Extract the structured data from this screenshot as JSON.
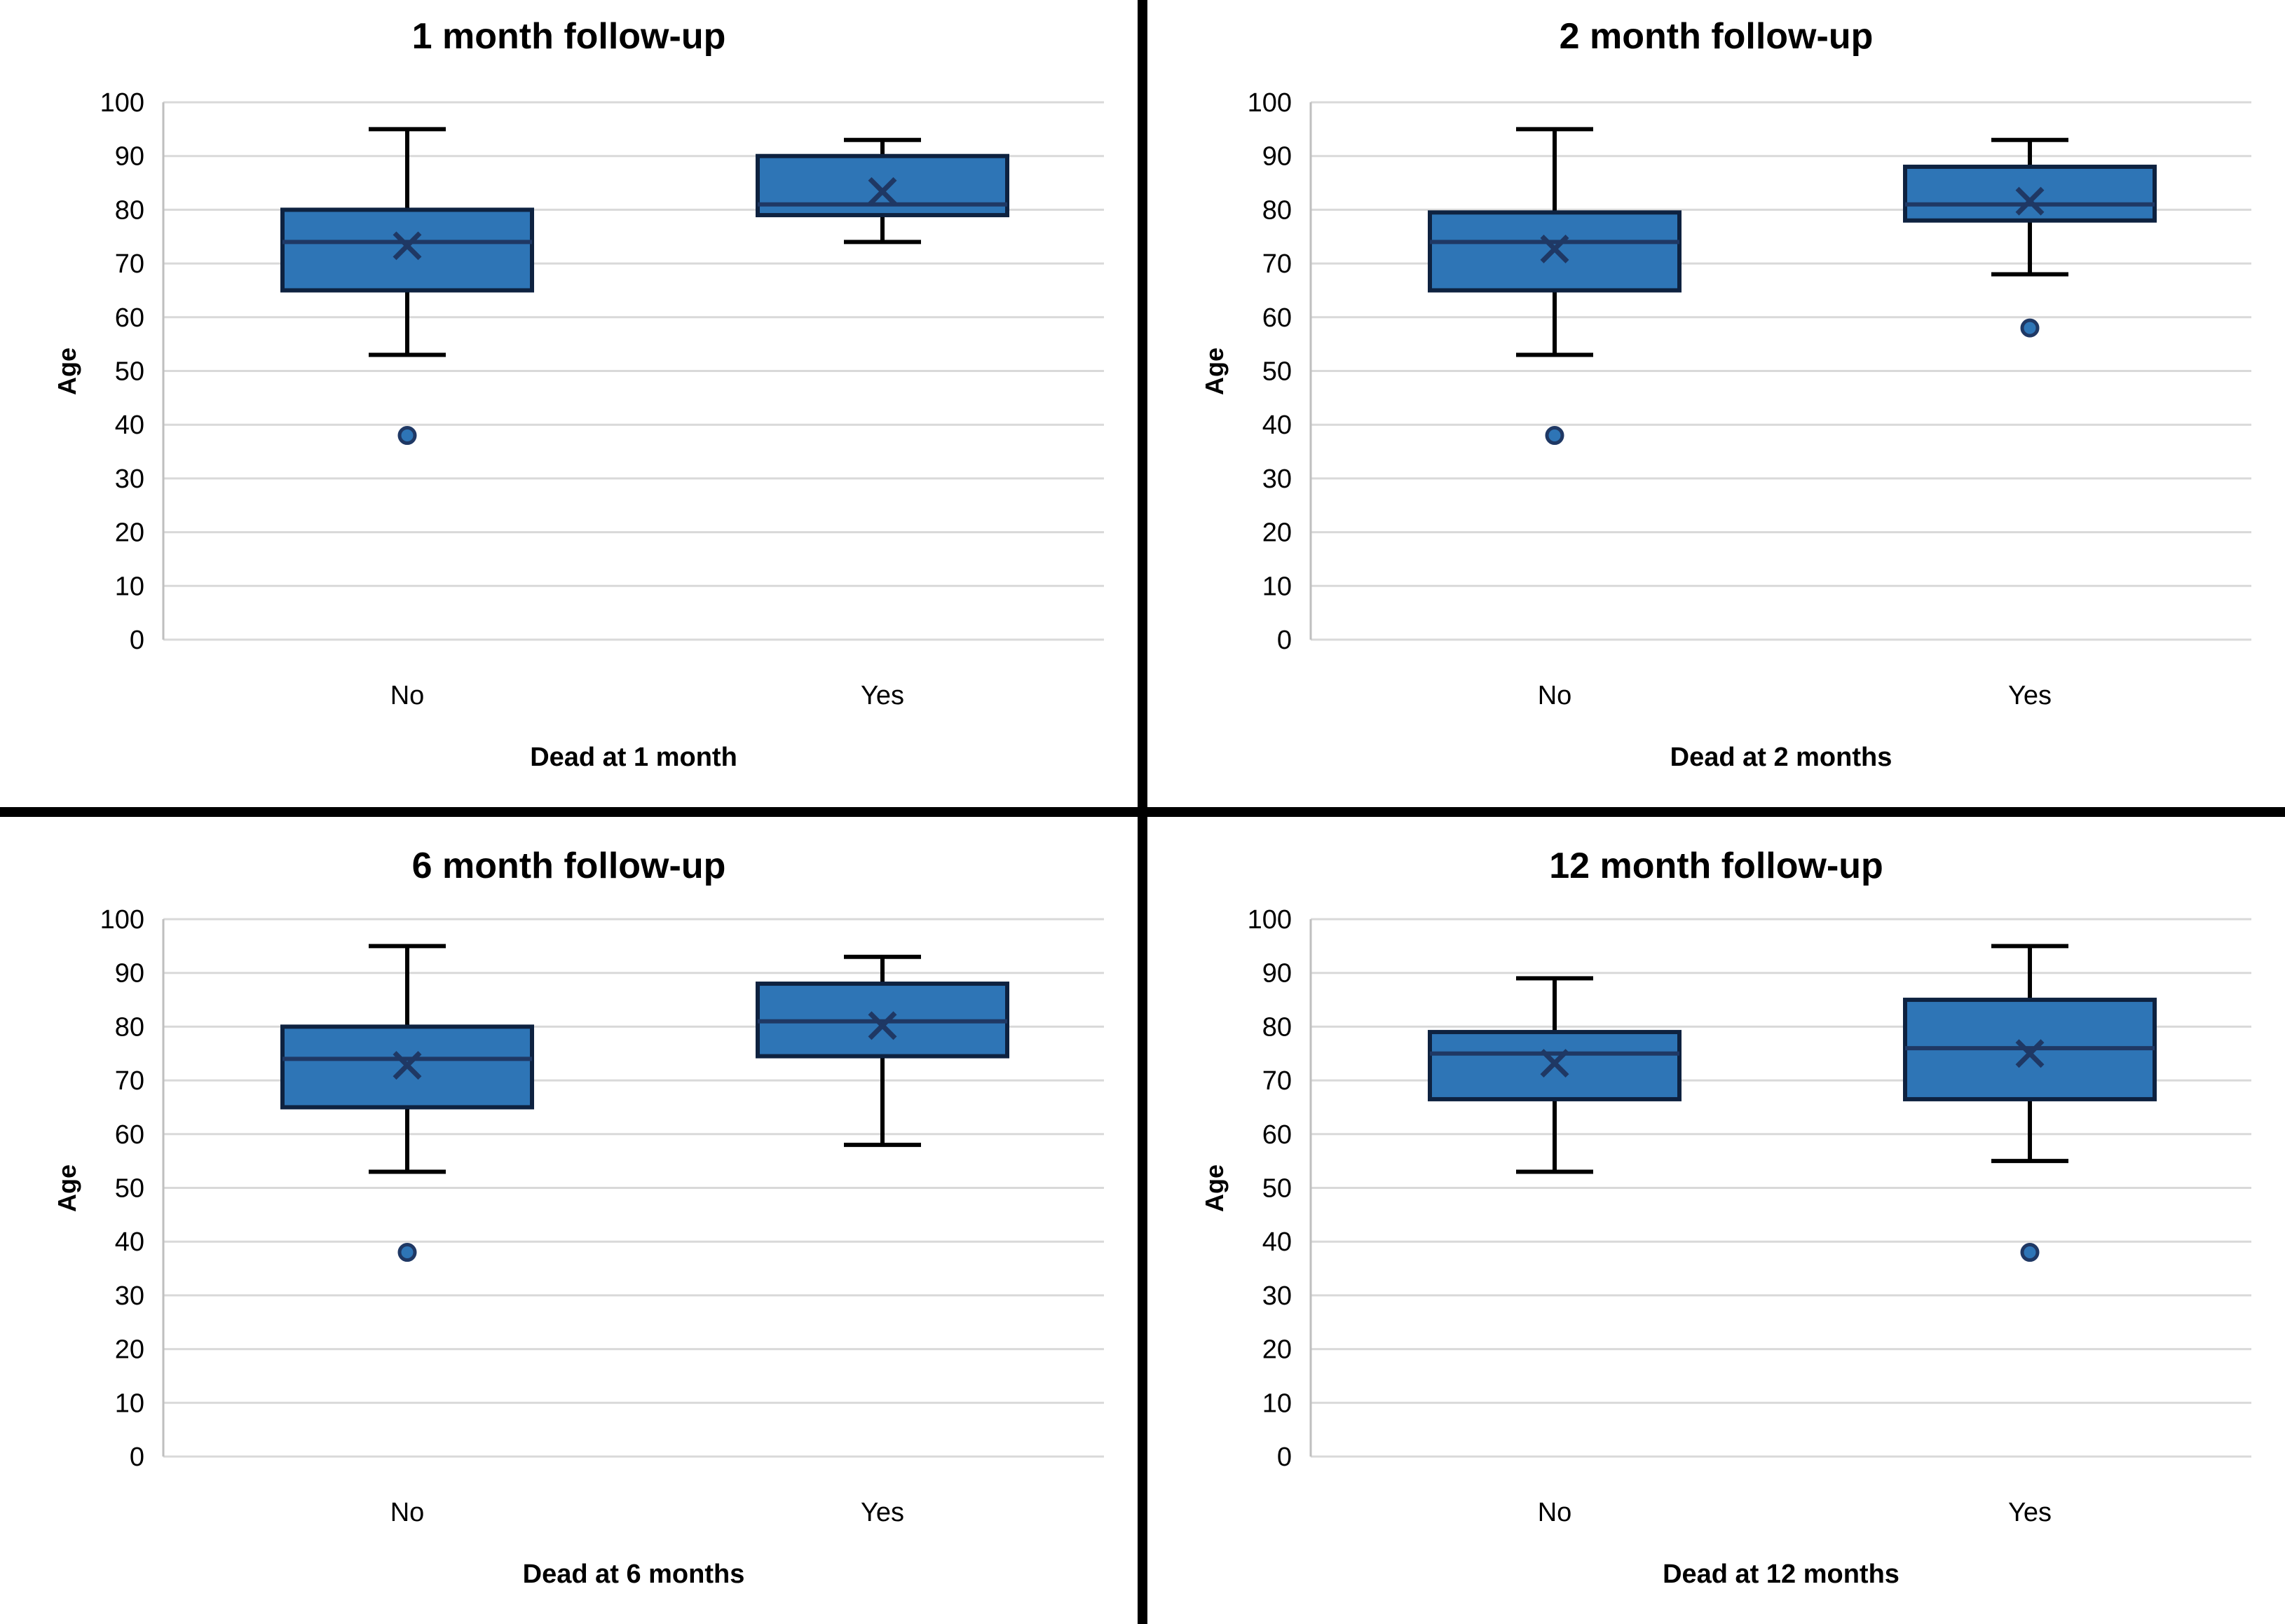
{
  "figure": {
    "background": "#ffffff",
    "divider_color": "#000000",
    "box_fill": "#2E75B6",
    "box_border": "#0E2240",
    "median_color": "#1F3864",
    "whisker_color": "#000000",
    "mean_marker_color": "#1F3864",
    "outlier_fill": "#2E75B6",
    "outlier_stroke": "#1F3864",
    "gridline_color": "#D9D9D9",
    "axis_line_color": "#BFBFBF",
    "text_color": "#000000"
  },
  "y_axis": {
    "label": "Age",
    "min": 0,
    "max": 100,
    "step": 10,
    "tick_labels": [
      "0",
      "10",
      "20",
      "30",
      "40",
      "50",
      "60",
      "70",
      "80",
      "90",
      "100"
    ]
  },
  "chart_data": [
    {
      "type": "boxplot",
      "title": "1 month follow-up",
      "xlabel": "Dead at 1 month",
      "ylabel": "Age",
      "ylim": [
        0,
        100
      ],
      "grid": true,
      "categories": [
        "No",
        "Yes"
      ],
      "series": [
        {
          "category": "No",
          "whisker_low": 53,
          "q1": 65,
          "median": 74,
          "q3": 80,
          "whisker_high": 95,
          "mean": 73.3,
          "outliers": [
            38
          ]
        },
        {
          "category": "Yes",
          "whisker_low": 74,
          "q1": 79,
          "median": 81,
          "q3": 90,
          "whisker_high": 93,
          "mean": 83.4,
          "outliers": []
        }
      ]
    },
    {
      "type": "boxplot",
      "title": "2 month follow-up",
      "xlabel": "Dead at 2 months",
      "ylabel": "Age",
      "ylim": [
        0,
        100
      ],
      "grid": true,
      "categories": [
        "No",
        "Yes"
      ],
      "series": [
        {
          "category": "No",
          "whisker_low": 53,
          "q1": 65,
          "median": 74,
          "q3": 79.5,
          "whisker_high": 95,
          "mean": 72.7,
          "outliers": [
            38
          ]
        },
        {
          "category": "Yes",
          "whisker_low": 68,
          "q1": 78,
          "median": 81,
          "q3": 88,
          "whisker_high": 93,
          "mean": 81.6,
          "outliers": [
            58
          ]
        }
      ]
    },
    {
      "type": "boxplot",
      "title": "6 month follow-up",
      "xlabel": "Dead at 6 months",
      "ylabel": "Age",
      "ylim": [
        0,
        100
      ],
      "grid": true,
      "categories": [
        "No",
        "Yes"
      ],
      "series": [
        {
          "category": "No",
          "whisker_low": 53,
          "q1": 65,
          "median": 74,
          "q3": 80,
          "whisker_high": 95,
          "mean": 72.8,
          "outliers": [
            38
          ]
        },
        {
          "category": "Yes",
          "whisker_low": 58,
          "q1": 74.5,
          "median": 81,
          "q3": 88,
          "whisker_high": 93,
          "mean": 80.2,
          "outliers": []
        }
      ]
    },
    {
      "type": "boxplot",
      "title": "12 month follow-up",
      "xlabel": "Dead at 12 months",
      "ylabel": "Age",
      "ylim": [
        0,
        100
      ],
      "grid": true,
      "categories": [
        "No",
        "Yes"
      ],
      "series": [
        {
          "category": "No",
          "whisker_low": 53,
          "q1": 66.5,
          "median": 75,
          "q3": 79,
          "whisker_high": 89,
          "mean": 73.2,
          "outliers": []
        },
        {
          "category": "Yes",
          "whisker_low": 55,
          "q1": 66.5,
          "median": 76,
          "q3": 85,
          "whisker_high": 95,
          "mean": 75.0,
          "outliers": [
            38
          ]
        }
      ]
    }
  ]
}
